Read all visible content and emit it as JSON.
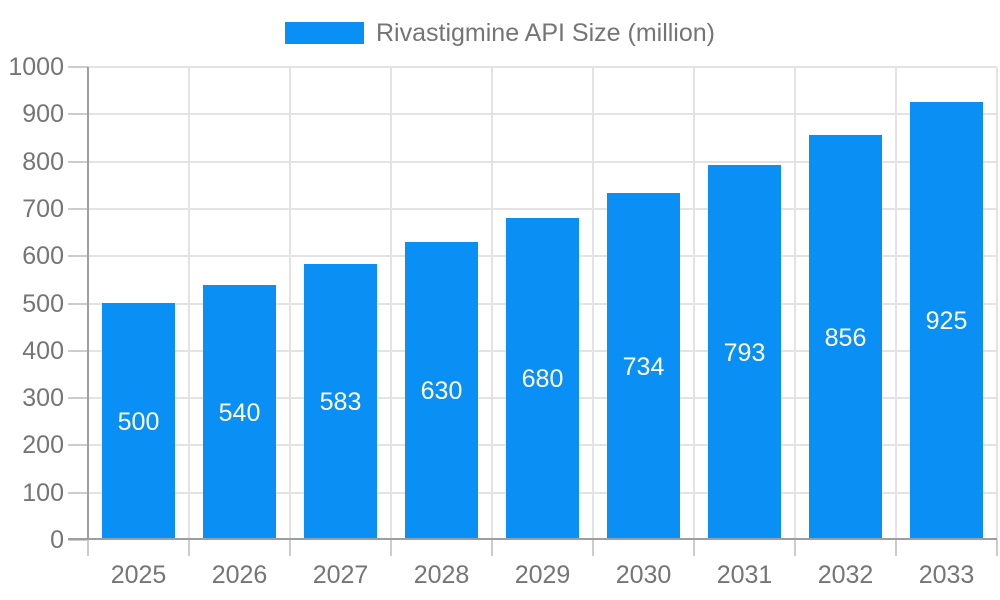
{
  "legend": {
    "label": "Rivastigmine API Size (million)",
    "swatch_color": "#0a8ff4"
  },
  "chart_data": {
    "type": "bar",
    "title": "Rivastigmine API Size (million)",
    "categories": [
      "2025",
      "2026",
      "2027",
      "2028",
      "2029",
      "2030",
      "2031",
      "2032",
      "2033"
    ],
    "values": [
      500,
      540,
      583,
      630,
      680,
      734,
      793,
      856,
      925
    ],
    "series_name": "Rivastigmine API Size (million)",
    "xlabel": "",
    "ylabel": "",
    "ylim": [
      0,
      1000
    ],
    "yticks": [
      0,
      100,
      200,
      300,
      400,
      500,
      600,
      700,
      800,
      900,
      1000
    ],
    "grid": true,
    "legend_position": "top",
    "data_labels": "inside-center-white"
  },
  "colors": {
    "bar": "#0a8ff4",
    "axis": "#9e9e9e",
    "tick": "#cccccc",
    "grid": "#e3e3e3",
    "text": "#757575",
    "bar_label_text": "#ffffff",
    "background": "#ffffff"
  }
}
